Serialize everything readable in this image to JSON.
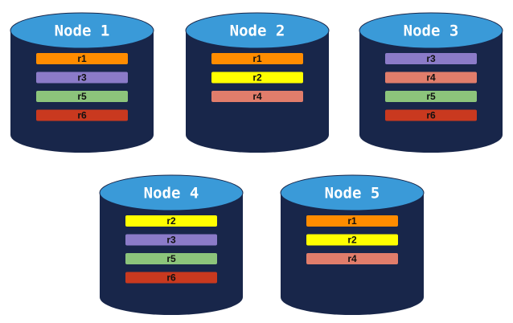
{
  "nodes": [
    {
      "label": "Node 1",
      "replicas": [
        "r1",
        "r3",
        "r5",
        "r6"
      ]
    },
    {
      "label": "Node 2",
      "replicas": [
        "r1",
        "r2",
        "r4"
      ]
    },
    {
      "label": "Node 3",
      "replicas": [
        "r3",
        "r4",
        "r5",
        "r6"
      ]
    },
    {
      "label": "Node 4",
      "replicas": [
        "r2",
        "r3",
        "r5",
        "r6"
      ]
    },
    {
      "label": "Node 5",
      "replicas": [
        "r1",
        "r2",
        "r4"
      ]
    }
  ],
  "replica_colors": {
    "r1": "#ff8c00",
    "r2": "#ffff00",
    "r3": "#8b7bc8",
    "r4": "#e17d6b",
    "r5": "#8cc47b",
    "r6": "#c9391f"
  }
}
